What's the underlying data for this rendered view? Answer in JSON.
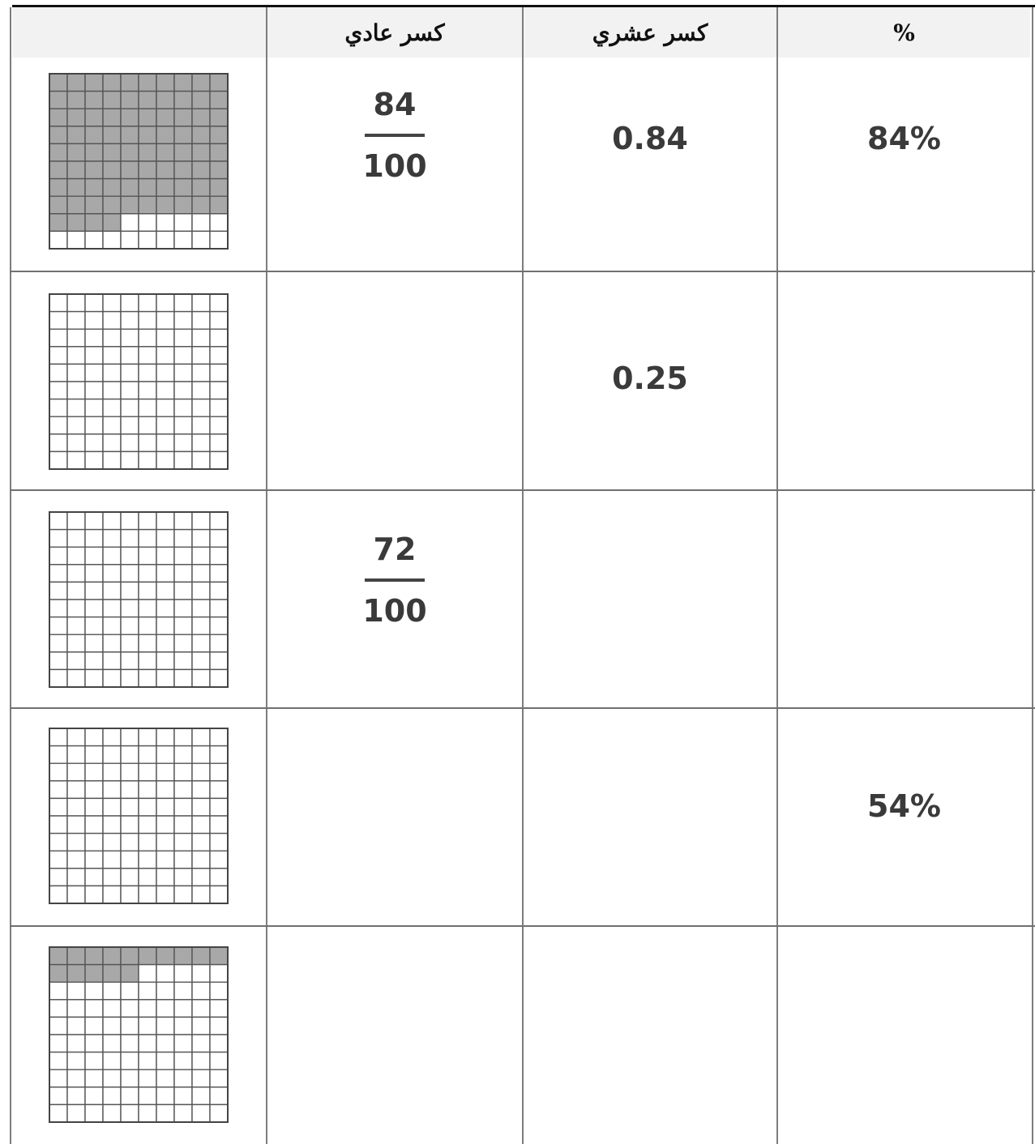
{
  "header": {
    "model_label": "",
    "fraction_label": "كسر عادي",
    "decimal_label": "كسر عشري",
    "percent_label": "%"
  },
  "rows": [
    {
      "shaded": 84,
      "fraction": {
        "numerator": "84",
        "denominator": "100"
      },
      "decimal": "0.84",
      "percent": "84%"
    },
    {
      "shaded": 0,
      "fraction": null,
      "decimal": "0.25",
      "percent": ""
    },
    {
      "shaded": 0,
      "fraction": {
        "numerator": "72",
        "denominator": "100"
      },
      "decimal": "",
      "percent": ""
    },
    {
      "shaded": 0,
      "fraction": null,
      "decimal": "",
      "percent": "54%"
    },
    {
      "shaded": 15,
      "fraction": null,
      "decimal": "",
      "percent": ""
    }
  ],
  "colors": {
    "shaded_square": "#a8a8a8",
    "grid_line": "#555555",
    "header_bg": "#f2f2f2"
  }
}
